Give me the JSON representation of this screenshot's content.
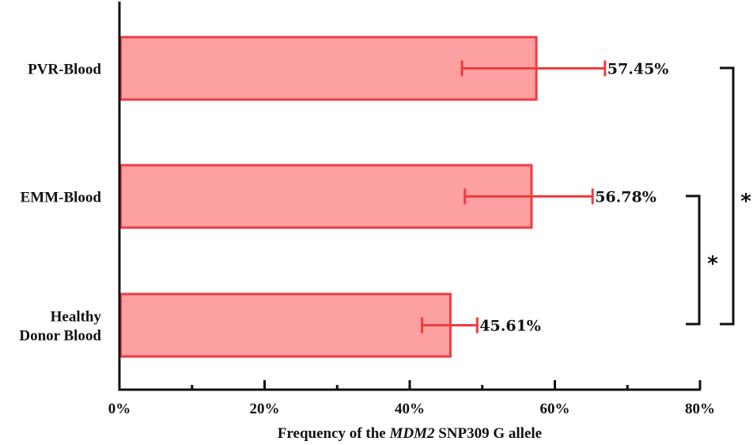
{
  "chart_data": {
    "type": "bar",
    "orientation": "horizontal",
    "title": "",
    "xlabel": "Frequency of the MDM2 SNP309 G allele",
    "xlabel_parts": [
      {
        "text": "Frequency of the ",
        "italic": false
      },
      {
        "text": "MDM2",
        "italic": true
      },
      {
        "text": " SNP309 G allele",
        "italic": false
      }
    ],
    "ylabel": "",
    "xlim": [
      0,
      80
    ],
    "x_ticks_major": [
      0,
      20,
      40,
      60,
      80
    ],
    "x_ticks_minor": [
      10,
      30,
      50,
      70
    ],
    "x_tick_labels": [
      "0%",
      "20%",
      "40%",
      "60%",
      "80%"
    ],
    "categories": [
      "PVR-Blood",
      "EMM-Blood",
      "Healthy Donor Blood"
    ],
    "category_label_lines": [
      [
        "PVR-Blood"
      ],
      [
        "EMM-Blood"
      ],
      [
        "Healthy",
        "Donor Blood"
      ]
    ],
    "values": [
      57.45,
      56.78,
      45.61
    ],
    "value_labels": [
      "57.45%",
      "56.78%",
      "45.61%"
    ],
    "error_low": [
      47.2,
      47.6,
      41.7
    ],
    "error_high": [
      66.9,
      65.2,
      49.3
    ],
    "grid": false,
    "legend": null,
    "significance": [
      {
        "between": [
          "EMM-Blood",
          "Healthy Donor Blood"
        ],
        "label": "*"
      },
      {
        "between": [
          "PVR-Blood",
          "Healthy Donor Blood"
        ],
        "label": "*"
      }
    ],
    "colors": {
      "bar_fill": "#fda0a2",
      "bar_edge": "#f03c40",
      "error_bar": "#f03c40",
      "axis": "#111111"
    }
  }
}
